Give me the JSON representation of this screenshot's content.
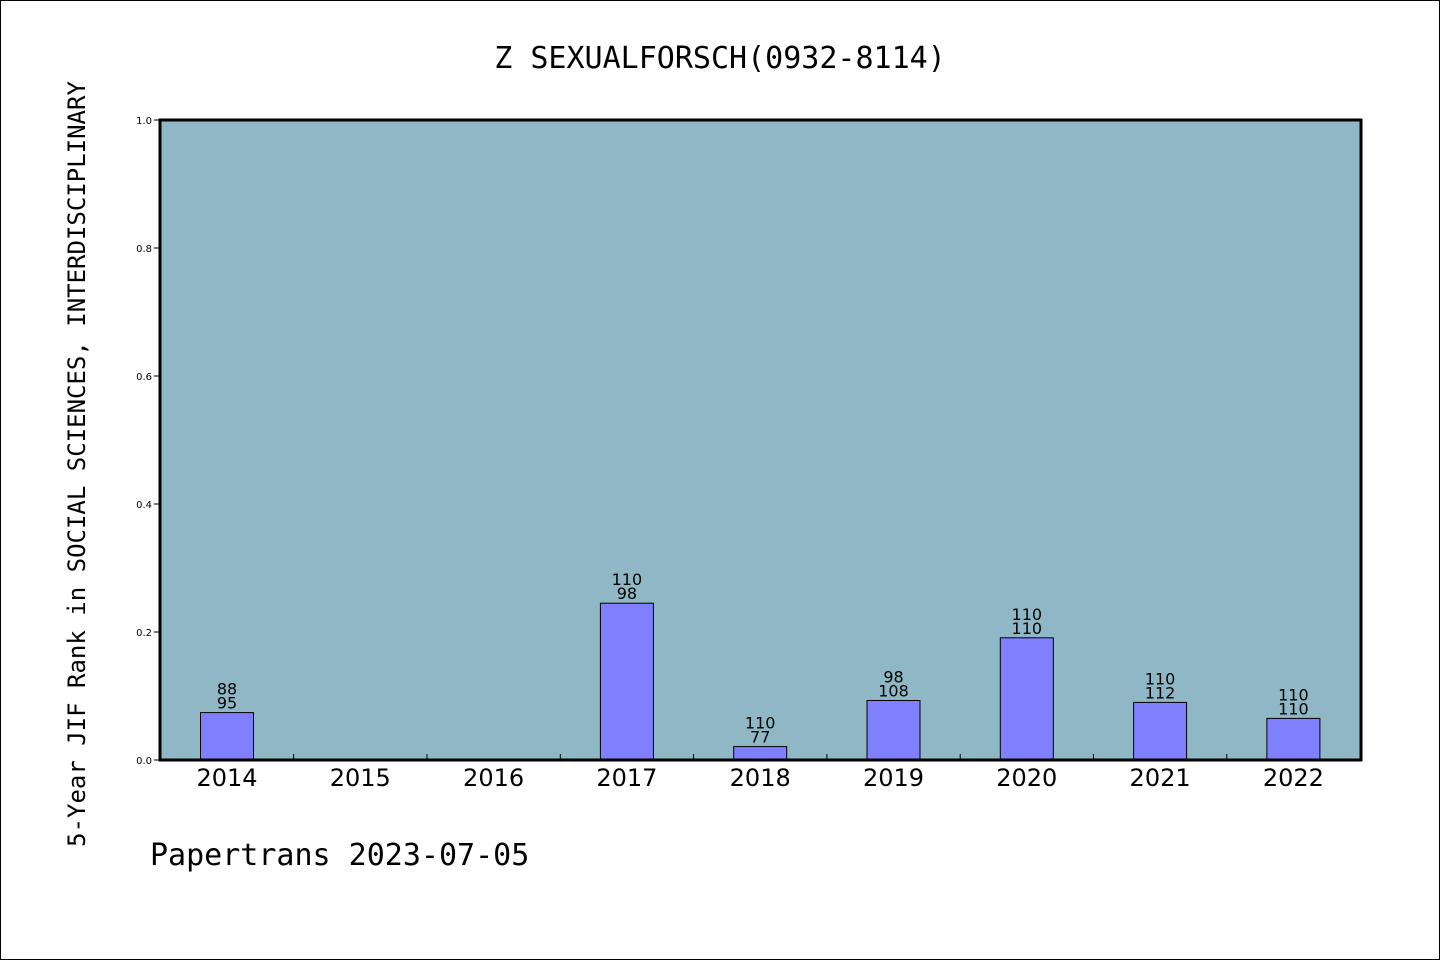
{
  "chart_data": {
    "type": "bar",
    "title": "Z SEXUALFORSCH(0932-8114)",
    "ylabel": "5-Year JIF Rank in SOCIAL SCIENCES, INTERDISCIPLINARY",
    "xlabel": "",
    "footer": "Papertrans 2023-07-05",
    "categories": [
      "2014",
      "2015",
      "2016",
      "2017",
      "2018",
      "2019",
      "2020",
      "2021",
      "2022"
    ],
    "values": [
      0.074,
      null,
      null,
      0.245,
      0.021,
      0.093,
      0.191,
      0.09,
      0.065
    ],
    "labels_top": [
      "88",
      "",
      "",
      "110",
      "110",
      "98",
      "110",
      "110",
      "110"
    ],
    "labels_bottom": [
      "95",
      "",
      "",
      "98",
      "77",
      "108",
      "110",
      "112",
      "110"
    ],
    "ylim": [
      0,
      1.0
    ],
    "yticks": [
      "0.0",
      "0.2",
      "0.4",
      "0.6",
      "0.8",
      "1.0"
    ],
    "grid": false,
    "colors": {
      "plot_background": "#8fb7c5",
      "bar_fill": "#8080ff",
      "bar_edge": "#000000",
      "axis": "#000000"
    }
  }
}
